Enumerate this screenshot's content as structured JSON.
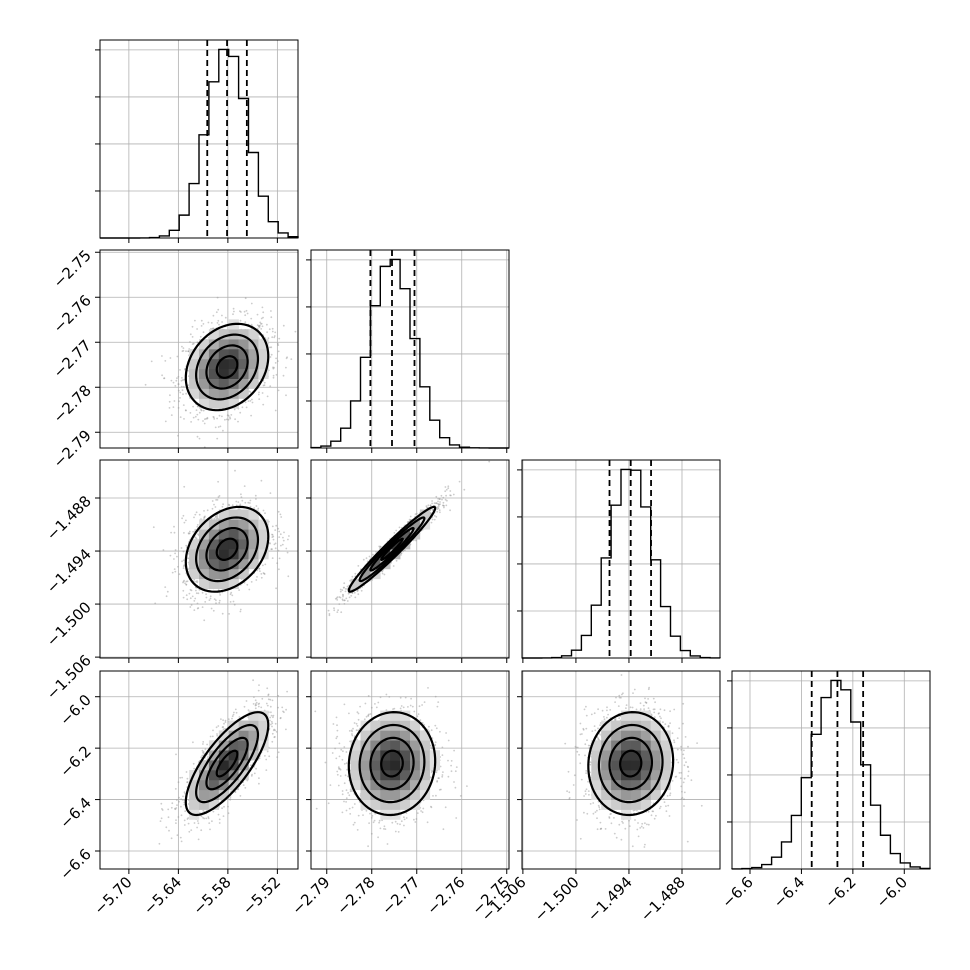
{
  "chart_data": {
    "type": "corner",
    "grid": true,
    "parameters": [
      {
        "range": [
          -5.735,
          -5.495
        ],
        "mean": -5.581,
        "std": 0.025,
        "quantiles": [
          -5.605,
          -5.581,
          -5.557
        ],
        "ticks": [
          -5.7,
          -5.64,
          -5.58,
          -5.52
        ],
        "tick_labels": [
          "−5.70",
          "−5.64",
          "−5.58",
          "−5.52"
        ]
      },
      {
        "range": [
          -2.7935,
          -2.7495
        ],
        "mean": -2.7755,
        "std": 0.0048,
        "quantiles": [
          -2.7803,
          -2.7755,
          -2.7705
        ],
        "ticks": [
          -2.79,
          -2.78,
          -2.77,
          -2.76,
          -2.75
        ],
        "tick_labels": [
          "−2.79",
          "−2.78",
          "−2.77",
          "−2.76",
          "−2.75"
        ]
      },
      {
        "range": [
          -1.5061,
          -1.4837
        ],
        "mean": -1.4938,
        "std": 0.0024,
        "quantiles": [
          -1.4962,
          -1.4938,
          -1.4915
        ],
        "ticks": [
          -1.506,
          -1.5,
          -1.494,
          -1.488
        ],
        "tick_labels": [
          "−1.506",
          "−1.500",
          "−1.494",
          "−1.488"
        ]
      },
      {
        "range": [
          -6.67,
          -5.9
        ],
        "mean": -6.26,
        "std": 0.1,
        "quantiles": [
          -6.36,
          -6.26,
          -6.16
        ],
        "ticks": [
          -6.6,
          -6.4,
          -6.2,
          -6.0
        ],
        "tick_labels": [
          "−6.6",
          "−6.4",
          "−6.2",
          "−6.0"
        ]
      }
    ],
    "correlations": [
      [
        1.0,
        0.25,
        0.3,
        0.75
      ],
      [
        0.25,
        1.0,
        0.97,
        0.05
      ],
      [
        0.3,
        0.97,
        1.0,
        0.05
      ],
      [
        0.75,
        0.05,
        0.05,
        1.0
      ]
    ],
    "histogram_bins": 20,
    "contour_levels_sigma": [
      0.5,
      1.0,
      1.5,
      2.0
    ]
  }
}
